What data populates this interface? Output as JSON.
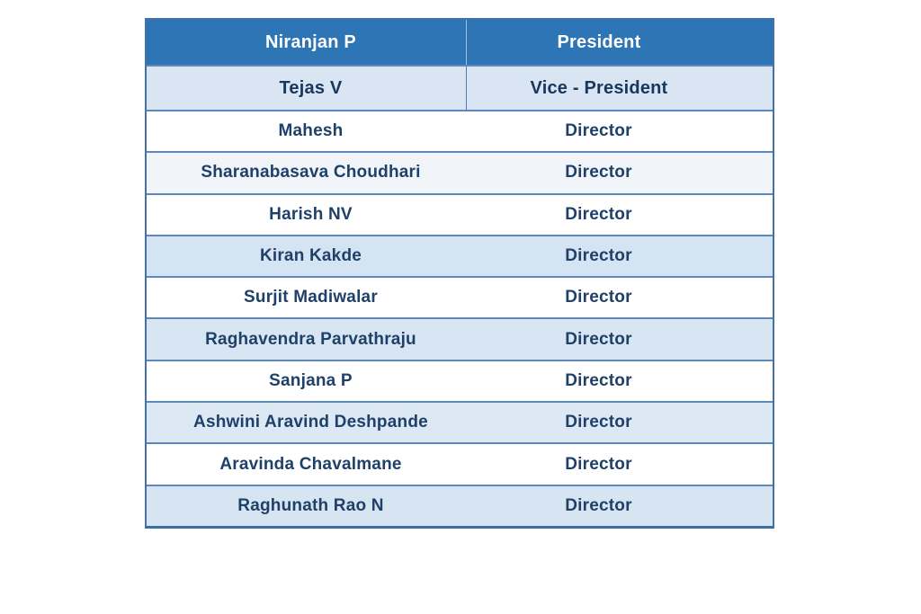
{
  "page": {
    "background": "#ffffff"
  },
  "table": {
    "columns": [
      "name",
      "role"
    ],
    "rows": [
      {
        "name": "Niranjan P",
        "role": "President",
        "bg": "#2e75b6",
        "fg": "#ffffff",
        "kind": "header"
      },
      {
        "name": "Tejas V",
        "role": "Vice - President",
        "bg": "#d9e5f3",
        "fg": "#17375d",
        "kind": "subheader"
      },
      {
        "name": "Mahesh",
        "role": "Director",
        "bg": "#ffffff",
        "fg": "#1f4068",
        "kind": "body"
      },
      {
        "name": "Sharanabasava Choudhari",
        "role": "Director",
        "bg": "#f1f5fa",
        "fg": "#1f4068",
        "kind": "body"
      },
      {
        "name": "Harish NV",
        "role": "Director",
        "bg": "#ffffff",
        "fg": "#1f4068",
        "kind": "body"
      },
      {
        "name": "Kiran Kakde",
        "role": "Director",
        "bg": "#d5e4f2",
        "fg": "#1f4068",
        "kind": "body"
      },
      {
        "name": "Surjit Madiwalar",
        "role": "Director",
        "bg": "#ffffff",
        "fg": "#1f4068",
        "kind": "body"
      },
      {
        "name": "Raghavendra Parvathraju",
        "role": "Director",
        "bg": "#d8e6f3",
        "fg": "#1f4068",
        "kind": "body"
      },
      {
        "name": "Sanjana P",
        "role": "Director",
        "bg": "#ffffff",
        "fg": "#1f4068",
        "kind": "body"
      },
      {
        "name": "Ashwini Aravind Deshpande",
        "role": "Director",
        "bg": "#dce8f4",
        "fg": "#1f4068",
        "kind": "body"
      },
      {
        "name": "Aravinda Chavalmane",
        "role": "Director",
        "bg": "#ffffff",
        "fg": "#1f4068",
        "kind": "body"
      },
      {
        "name": "Raghunath Rao N",
        "role": "Director",
        "bg": "#d7e5f2",
        "fg": "#1f4068",
        "kind": "body"
      }
    ],
    "colors": {
      "header_bg": "#2e75b6",
      "header_text": "#ffffff",
      "subheader_bg": "#d9e5f3",
      "navy_text": "#1f4068",
      "stripe_blue": "#d7e5f2",
      "stripe_pale": "#f1f5fa"
    },
    "borders": {
      "outer": "#4472a8",
      "row_separator": "#5d89ba",
      "bottom": "#38719f",
      "header_divider": "#9cc0e0",
      "subheader_divider": "#4d7fb0"
    }
  }
}
